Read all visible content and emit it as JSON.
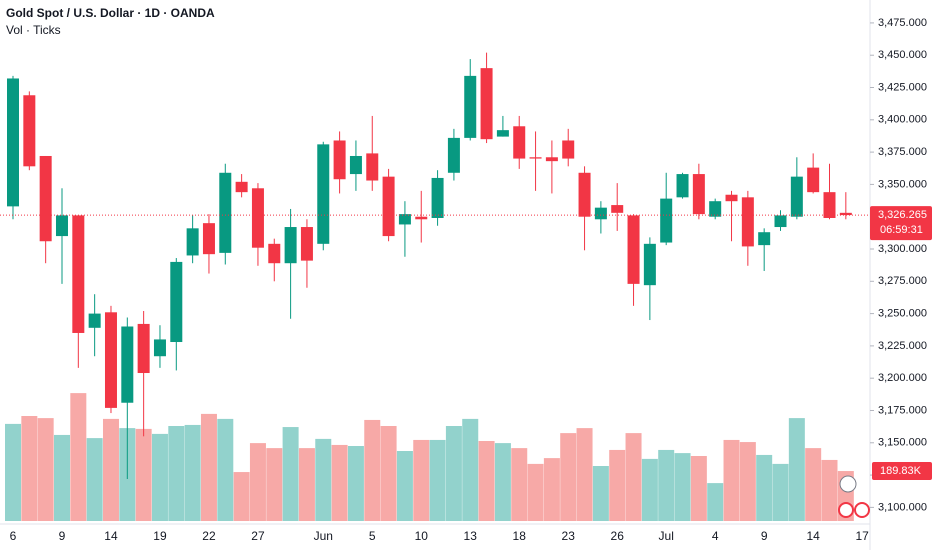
{
  "chart_data": {
    "type": "candlestick",
    "title": "Gold Spot / U.S. Dollar · 1D · OANDA",
    "subtitle": "Vol · Ticks",
    "up_color": "#089981",
    "down_color": "#f23645",
    "up_volume_color": "#92d2cc",
    "down_volume_color": "#f7a9a7",
    "categories": [
      "6",
      null,
      null,
      "9",
      null,
      null,
      "14",
      null,
      null,
      "19",
      null,
      null,
      "22",
      null,
      null,
      "27",
      null,
      null,
      null,
      "Jun",
      null,
      null,
      "5",
      null,
      null,
      "10",
      null,
      null,
      "13",
      null,
      null,
      "18",
      null,
      null,
      "23",
      null,
      null,
      "26",
      null,
      null,
      "Jul",
      null,
      null,
      "4",
      null,
      null,
      "9",
      null,
      null,
      "14",
      null,
      null,
      "17"
    ],
    "open": [
      3333,
      3419,
      3372,
      3310,
      3326,
      3239,
      3251,
      3181,
      3242,
      3217,
      3228,
      3295,
      3320,
      3297,
      3352,
      3347,
      3304,
      3289,
      3317,
      3304,
      3384,
      3358,
      3374,
      3356,
      3319,
      3325,
      3324,
      3359,
      3386,
      3440,
      3387,
      3395,
      3371,
      3371,
      3384,
      3359,
      3323,
      3334,
      3326,
      3272,
      3305,
      3340,
      3358,
      3325,
      3342,
      3340,
      3303,
      3317,
      3325,
      3363,
      3344,
      3328,
      null
    ],
    "high": [
      3434,
      3422,
      3372,
      3347,
      3326,
      3265,
      3256,
      3247,
      3252,
      3241,
      3293,
      3326,
      3327,
      3366,
      3358,
      3351,
      3308,
      3331,
      3323,
      3383,
      3391,
      3384,
      3403,
      3362,
      3337,
      3345,
      3361,
      3393,
      3447,
      3452,
      3403,
      3403,
      3391,
      3384,
      3393,
      3364,
      3337,
      3351,
      3327,
      3309,
      3359,
      3359,
      3366,
      3339,
      3345,
      3345,
      3316,
      3330,
      3371,
      3374,
      3366,
      3344,
      null
    ],
    "low": [
      3323,
      3361,
      3289,
      3273,
      3208,
      3217,
      3173,
      3122,
      3155,
      3208,
      3206,
      3289,
      3281,
      3288,
      3340,
      3287,
      3275,
      3246,
      3270,
      3299,
      3343,
      3345,
      3345,
      3306,
      3294,
      3305,
      3318,
      3353,
      3384,
      3382,
      3387,
      3362,
      3345,
      3343,
      3364,
      3299,
      3312,
      3314,
      3256,
      3245,
      3303,
      3339,
      3323,
      3323,
      3306,
      3287,
      3283,
      3314,
      3323,
      3343,
      3323,
      3323,
      null
    ],
    "close": [
      3432,
      3364,
      3306,
      3326,
      3235,
      3250,
      3177,
      3240,
      3204,
      3230,
      3290,
      3316,
      3296,
      3359,
      3344,
      3301,
      3289,
      3317,
      3291,
      3381,
      3354,
      3372,
      3353,
      3310,
      3327,
      3323,
      3355,
      3386,
      3434,
      3385,
      3392,
      3370,
      3370,
      3368,
      3370,
      3325,
      3332,
      3328,
      3273,
      3304,
      3339,
      3358,
      3327,
      3337,
      3337,
      3302,
      3313,
      3326,
      3356,
      3344,
      3324,
      3326.265,
      null
    ],
    "volume": [
      369,
      399,
      391,
      327,
      486,
      315,
      388,
      353,
      350,
      331,
      361,
      365,
      407,
      388,
      186,
      296,
      277,
      357,
      277,
      312,
      289,
      285,
      384,
      361,
      266,
      308,
      308,
      361,
      388,
      304,
      296,
      277,
      217,
      239,
      334,
      353,
      209,
      270,
      334,
      236,
      270,
      258,
      247,
      144,
      308,
      300,
      251,
      217,
      391,
      277,
      232,
      189.83,
      null
    ],
    "volume_value_labels": [
      null,
      null,
      null,
      null,
      null,
      null,
      null,
      null,
      null,
      null,
      null,
      null,
      null,
      null,
      null,
      null,
      null,
      null,
      null,
      null,
      null,
      null,
      null,
      null,
      null,
      null,
      null,
      null,
      null,
      null,
      null,
      null,
      null,
      null,
      null,
      null,
      null,
      null,
      null,
      null,
      null,
      null,
      null,
      null,
      null,
      null,
      null,
      null,
      null,
      null,
      null,
      "189.83K",
      null
    ],
    "last_price": {
      "value": 3326.265,
      "label": "3,326.265"
    },
    "countdown": "06:59:31",
    "ylim": [
      3091,
      3485
    ],
    "yticks": [
      {
        "value": 3100,
        "label": "3,100.000"
      },
      {
        "value": 3125,
        "label": "3,125.000"
      },
      {
        "value": 3150,
        "label": "3,150.000"
      },
      {
        "value": 3175,
        "label": "3,175.000"
      },
      {
        "value": 3200,
        "label": "3,200.000"
      },
      {
        "value": 3225,
        "label": "3,225.000"
      },
      {
        "value": 3250,
        "label": "3,250.000"
      },
      {
        "value": 3275,
        "label": "3,275.000"
      },
      {
        "value": 3300,
        "label": "3,300.000"
      },
      {
        "value": 3325,
        "label": "3,325.000"
      },
      {
        "value": 3350,
        "label": "3,350.000"
      },
      {
        "value": 3375,
        "label": "3,375.000"
      },
      {
        "value": 3400,
        "label": "3,400.000"
      },
      {
        "value": 3425,
        "label": "3,425.000"
      },
      {
        "value": 3450,
        "label": "3,450.000"
      },
      {
        "value": 3475,
        "label": "3,475.000"
      }
    ]
  }
}
